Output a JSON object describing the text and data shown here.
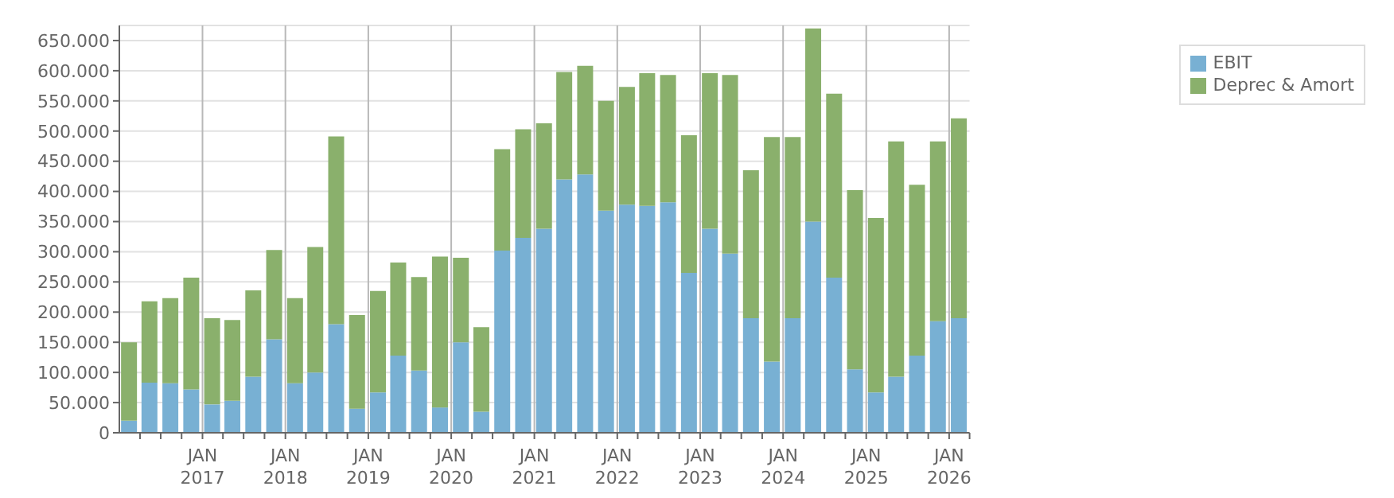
{
  "chart_data": {
    "type": "bar",
    "stacked": true,
    "x": [
      "2016-02-15",
      "2016-05-15",
      "2016-08-15",
      "2016-11-15",
      "2017-02-15",
      "2017-05-15",
      "2017-08-15",
      "2017-11-15",
      "2018-02-15",
      "2018-05-15",
      "2018-08-15",
      "2018-11-15",
      "2019-02-15",
      "2019-05-15",
      "2019-08-15",
      "2019-11-15",
      "2020-02-15",
      "2020-05-15",
      "2020-08-15",
      "2020-11-15",
      "2021-02-15",
      "2021-05-15",
      "2021-08-15",
      "2021-11-15",
      "2022-02-15",
      "2022-05-15",
      "2022-08-15",
      "2022-11-15",
      "2023-02-15",
      "2023-05-15",
      "2023-08-15",
      "2023-11-15",
      "2024-02-15",
      "2024-05-15",
      "2024-08-15",
      "2024-11-15",
      "2025-02-15",
      "2025-05-15",
      "2025-08-15",
      "2025-11-15",
      "2026-02-15"
    ],
    "series": [
      {
        "name": "EBIT",
        "color": "#78b0d3",
        "values": [
          20000,
          83000,
          82000,
          72000,
          47000,
          53000,
          93000,
          155000,
          82000,
          100000,
          180000,
          40000,
          67000,
          128000,
          103000,
          42000,
          150000,
          35000,
          302000,
          323000,
          338000,
          420000,
          428000,
          368000,
          378000,
          376000,
          382000,
          265000,
          338000,
          297000,
          190000,
          118000,
          190000,
          350000,
          257000,
          105000,
          67000,
          93000,
          128000,
          185000,
          190000
        ]
      },
      {
        "name": "Deprec & Amort",
        "color": "#8ab06c",
        "values": [
          130000,
          135000,
          141000,
          185000,
          143000,
          134000,
          143000,
          148000,
          141000,
          208000,
          311000,
          155000,
          168000,
          154000,
          155000,
          250000,
          140000,
          140000,
          168000,
          180000,
          175000,
          178000,
          180000,
          182000,
          195000,
          220000,
          211000,
          228000,
          258000,
          296000,
          245000,
          372000,
          300000,
          320000,
          305000,
          297000,
          289000,
          390000,
          283000,
          298000,
          331000
        ]
      }
    ],
    "xlim": [
      "2016-01-01",
      "2026-04-01"
    ],
    "xticks": [
      {
        "value": "2016-04-01",
        "label": null
      },
      {
        "value": "2016-07-01",
        "label": null
      },
      {
        "value": "2016-10-01",
        "label": null
      },
      {
        "value": "2017-01-01",
        "label": "JAN 2017"
      },
      {
        "value": "2017-04-01",
        "label": null
      },
      {
        "value": "2017-07-01",
        "label": null
      },
      {
        "value": "2017-10-01",
        "label": null
      },
      {
        "value": "2018-01-01",
        "label": "JAN 2018"
      },
      {
        "value": "2018-04-01",
        "label": null
      },
      {
        "value": "2018-07-01",
        "label": null
      },
      {
        "value": "2018-10-01",
        "label": null
      },
      {
        "value": "2019-01-01",
        "label": "JAN 2019"
      },
      {
        "value": "2019-04-01",
        "label": null
      },
      {
        "value": "2019-07-01",
        "label": null
      },
      {
        "value": "2019-10-01",
        "label": null
      },
      {
        "value": "2020-01-01",
        "label": "JAN 2020"
      },
      {
        "value": "2020-04-01",
        "label": null
      },
      {
        "value": "2020-07-01",
        "label": null
      },
      {
        "value": "2020-10-01",
        "label": null
      },
      {
        "value": "2021-01-01",
        "label": "JAN 2021"
      },
      {
        "value": "2021-04-01",
        "label": null
      },
      {
        "value": "2021-07-01",
        "label": null
      },
      {
        "value": "2021-10-01",
        "label": null
      },
      {
        "value": "2022-01-01",
        "label": "JAN 2022"
      },
      {
        "value": "2022-04-01",
        "label": null
      },
      {
        "value": "2022-07-01",
        "label": null
      },
      {
        "value": "2022-10-01",
        "label": null
      },
      {
        "value": "2023-01-01",
        "label": "JAN 2023"
      },
      {
        "value": "2023-04-01",
        "label": null
      },
      {
        "value": "2023-07-01",
        "label": null
      },
      {
        "value": "2023-10-01",
        "label": null
      },
      {
        "value": "2024-01-01",
        "label": "JAN 2024"
      },
      {
        "value": "2024-04-01",
        "label": null
      },
      {
        "value": "2024-07-01",
        "label": null
      },
      {
        "value": "2024-10-01",
        "label": null
      },
      {
        "value": "2025-01-01",
        "label": "JAN 2025"
      },
      {
        "value": "2025-04-01",
        "label": null
      },
      {
        "value": "2025-07-01",
        "label": null
      },
      {
        "value": "2025-10-01",
        "label": null
      },
      {
        "value": "2026-01-01",
        "label": "JAN 2026"
      },
      {
        "value": "2026-04-01",
        "label": null
      }
    ],
    "ylim": [
      0,
      675000
    ],
    "yticks": [
      {
        "value": 0,
        "label": "0"
      },
      {
        "value": 50000,
        "label": "50.000"
      },
      {
        "value": 100000,
        "label": "100.000"
      },
      {
        "value": 150000,
        "label": "150.000"
      },
      {
        "value": 200000,
        "label": "200.000"
      },
      {
        "value": 250000,
        "label": "250.000"
      },
      {
        "value": 300000,
        "label": "300.000"
      },
      {
        "value": 350000,
        "label": "350.000"
      },
      {
        "value": 400000,
        "label": "400.000"
      },
      {
        "value": 450000,
        "label": "450.000"
      },
      {
        "value": 500000,
        "label": "500.000"
      },
      {
        "value": 550000,
        "label": "550.000"
      },
      {
        "value": 600000,
        "label": "600.000"
      },
      {
        "value": 650000,
        "label": "650.000"
      }
    ],
    "grid": true,
    "legend": "top right"
  }
}
